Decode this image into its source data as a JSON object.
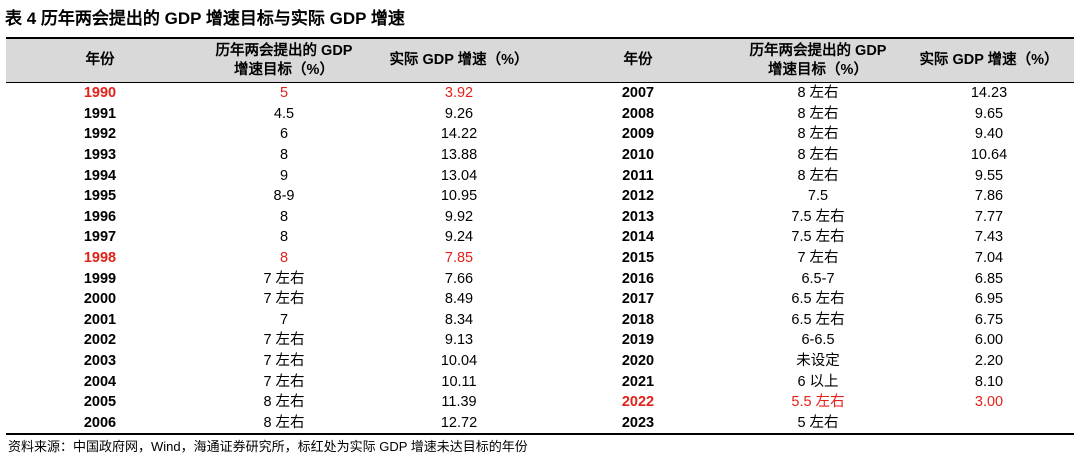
{
  "title": "表 4 历年两会提出的 GDP 增速目标与实际 GDP 增速",
  "headers": [
    "年份",
    "历年两会提出的 GDP 增速目标（%）",
    "实际 GDP 增速（%）",
    "年份",
    "历年两会提出的 GDP 增速目标（%）",
    "实际 GDP 增速（%）"
  ],
  "header_lines": {
    "target_line1": "历年两会提出的 GDP",
    "target_line2": "增速目标（%）"
  },
  "rows": [
    {
      "left": [
        "1990",
        "5",
        "3.92"
      ],
      "right": [
        "2007",
        "8 左右",
        "14.23"
      ],
      "left_red": true,
      "right_red": false
    },
    {
      "left": [
        "1991",
        "4.5",
        "9.26"
      ],
      "right": [
        "2008",
        "8 左右",
        "9.65"
      ],
      "left_red": false,
      "right_red": false
    },
    {
      "left": [
        "1992",
        "6",
        "14.22"
      ],
      "right": [
        "2009",
        "8 左右",
        "9.40"
      ],
      "left_red": false,
      "right_red": false
    },
    {
      "left": [
        "1993",
        "8",
        "13.88"
      ],
      "right": [
        "2010",
        "8 左右",
        "10.64"
      ],
      "left_red": false,
      "right_red": false
    },
    {
      "left": [
        "1994",
        "9",
        "13.04"
      ],
      "right": [
        "2011",
        "8 左右",
        "9.55"
      ],
      "left_red": false,
      "right_red": false
    },
    {
      "left": [
        "1995",
        "8-9",
        "10.95"
      ],
      "right": [
        "2012",
        "7.5",
        "7.86"
      ],
      "left_red": false,
      "right_red": false
    },
    {
      "left": [
        "1996",
        "8",
        "9.92"
      ],
      "right": [
        "2013",
        "7.5 左右",
        "7.77"
      ],
      "left_red": false,
      "right_red": false
    },
    {
      "left": [
        "1997",
        "8",
        "9.24"
      ],
      "right": [
        "2014",
        "7.5 左右",
        "7.43"
      ],
      "left_red": false,
      "right_red": false
    },
    {
      "left": [
        "1998",
        "8",
        "7.85"
      ],
      "right": [
        "2015",
        "7 左右",
        "7.04"
      ],
      "left_red": true,
      "right_red": false
    },
    {
      "left": [
        "1999",
        "7 左右",
        "7.66"
      ],
      "right": [
        "2016",
        "6.5-7",
        "6.85"
      ],
      "left_red": false,
      "right_red": false
    },
    {
      "left": [
        "2000",
        "7 左右",
        "8.49"
      ],
      "right": [
        "2017",
        "6.5 左右",
        "6.95"
      ],
      "left_red": false,
      "right_red": false
    },
    {
      "left": [
        "2001",
        "7",
        "8.34"
      ],
      "right": [
        "2018",
        "6.5 左右",
        "6.75"
      ],
      "left_red": false,
      "right_red": false
    },
    {
      "left": [
        "2002",
        "7 左右",
        "9.13"
      ],
      "right": [
        "2019",
        "6-6.5",
        "6.00"
      ],
      "left_red": false,
      "right_red": false
    },
    {
      "left": [
        "2003",
        "7 左右",
        "10.04"
      ],
      "right": [
        "2020",
        "未设定",
        "2.20"
      ],
      "left_red": false,
      "right_red": false
    },
    {
      "left": [
        "2004",
        "7 左右",
        "10.11"
      ],
      "right": [
        "2021",
        "6 以上",
        "8.10"
      ],
      "left_red": false,
      "right_red": false
    },
    {
      "left": [
        "2005",
        "8 左右",
        "11.39"
      ],
      "right": [
        "2022",
        "5.5 左右",
        "3.00"
      ],
      "left_red": false,
      "right_red": true
    },
    {
      "left": [
        "2006",
        "8 左右",
        "12.72"
      ],
      "right": [
        "2023",
        "5 左右",
        ""
      ],
      "left_red": false,
      "right_red": false
    }
  ],
  "source": "资料来源：中国政府网，Wind，海通证券研究所，标红处为实际 GDP 增速未达目标的年份",
  "colors": {
    "red": "#e32119",
    "header_bg": "#d9d9d9"
  }
}
